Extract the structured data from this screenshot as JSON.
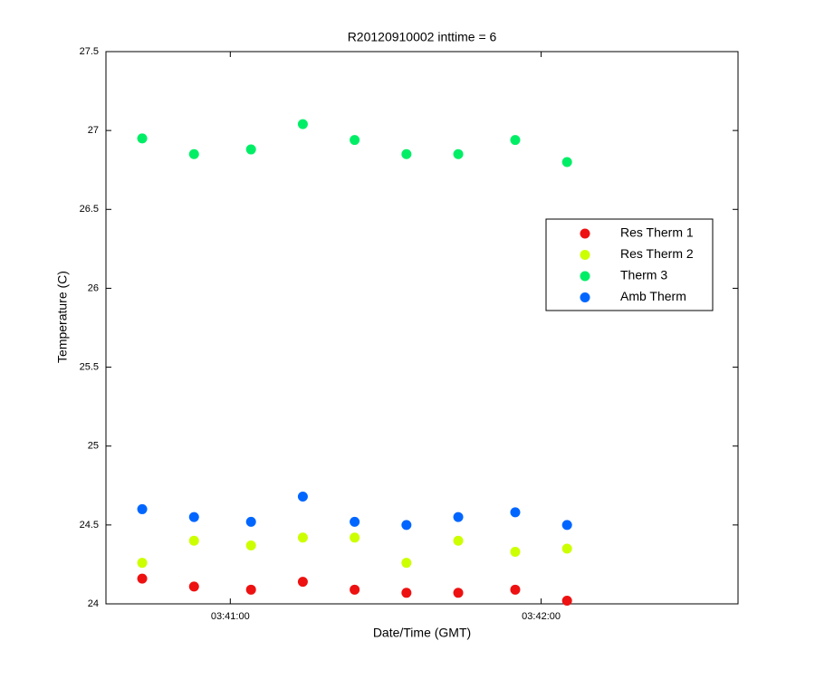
{
  "chart_data": {
    "type": "scatter",
    "title": "R20120910002 inttime = 6",
    "x_label": "Date/Time (GMT)",
    "y_label": "Temperature (C)",
    "x": [
      "03:40:43",
      "03:40:53",
      "03:41:04",
      "03:41:14",
      "03:41:24",
      "03:41:34",
      "03:41:44",
      "03:41:55",
      "03:42:05"
    ],
    "series": [
      {
        "name": "Res Therm 1",
        "color": "#ee1111",
        "values": [
          24.16,
          24.11,
          24.09,
          24.14,
          24.09,
          24.07,
          24.07,
          24.09,
          24.02
        ]
      },
      {
        "name": "Res Therm 2",
        "color": "#ccff00",
        "values": [
          24.26,
          24.4,
          24.37,
          24.42,
          24.42,
          24.26,
          24.4,
          24.33,
          24.35
        ]
      },
      {
        "name": "Therm 3",
        "color": "#00ee66",
        "values": [
          26.95,
          26.85,
          26.88,
          27.04,
          26.94,
          26.85,
          26.85,
          26.94,
          26.8
        ]
      },
      {
        "name": "Amb Therm",
        "color": "#0066ff",
        "values": [
          24.6,
          24.55,
          24.52,
          24.68,
          24.52,
          24.5,
          24.55,
          24.58,
          24.5
        ]
      }
    ],
    "xlim": [
      "03:40:36",
      "03:42:38"
    ],
    "xticks": [
      "03:41:00",
      "03:42:00"
    ],
    "ylim": [
      24,
      27.5
    ],
    "yticks": [
      24,
      24.5,
      25,
      25.5,
      26,
      26.5,
      27,
      27.5
    ],
    "grid": false,
    "legend": "right"
  }
}
